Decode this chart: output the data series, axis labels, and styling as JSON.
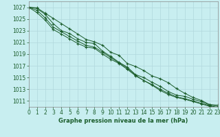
{
  "title": "Graphe pression niveau de la mer (hPa)",
  "bg_color": "#c8eef0",
  "grid_color": "#b0d8dc",
  "line_color": "#1a5c2a",
  "xlim": [
    0,
    23
  ],
  "ylim": [
    1010.0,
    1028.0
  ],
  "yticks": [
    1011,
    1013,
    1015,
    1017,
    1019,
    1021,
    1023,
    1025,
    1027
  ],
  "xticks": [
    0,
    1,
    2,
    3,
    4,
    5,
    6,
    7,
    8,
    9,
    10,
    11,
    12,
    13,
    14,
    15,
    16,
    17,
    18,
    19,
    20,
    21,
    22,
    23
  ],
  "lines": [
    [
      1027.0,
      1026.9,
      1026.0,
      1025.1,
      1024.2,
      1023.3,
      1022.4,
      1021.5,
      1021.1,
      1020.5,
      1019.3,
      1018.8,
      1017.4,
      1016.9,
      1016.2,
      1015.3,
      1014.8,
      1014.1,
      1013.1,
      1012.3,
      1011.6,
      1011.1,
      1010.4,
      1010.3
    ],
    [
      1027.0,
      1026.8,
      1025.8,
      1024.2,
      1023.0,
      1022.5,
      1021.6,
      1021.0,
      1020.8,
      1019.5,
      1018.6,
      1017.6,
      1016.8,
      1015.5,
      1015.0,
      1014.2,
      1013.5,
      1012.6,
      1012.0,
      1011.8,
      1011.3,
      1010.9,
      1010.3,
      1010.1
    ],
    [
      1027.0,
      1026.5,
      1025.2,
      1023.6,
      1022.8,
      1022.0,
      1021.2,
      1020.5,
      1020.2,
      1019.3,
      1018.4,
      1017.5,
      1016.6,
      1015.4,
      1014.5,
      1013.8,
      1013.0,
      1012.3,
      1011.7,
      1011.4,
      1011.0,
      1010.6,
      1010.2,
      1009.9
    ],
    [
      1027.0,
      1026.1,
      1024.8,
      1023.2,
      1022.4,
      1021.6,
      1020.8,
      1020.2,
      1020.0,
      1019.0,
      1018.1,
      1017.4,
      1016.4,
      1015.3,
      1014.5,
      1013.7,
      1012.8,
      1012.1,
      1011.6,
      1011.3,
      1010.9,
      1010.5,
      1010.1,
      1009.8
    ]
  ]
}
